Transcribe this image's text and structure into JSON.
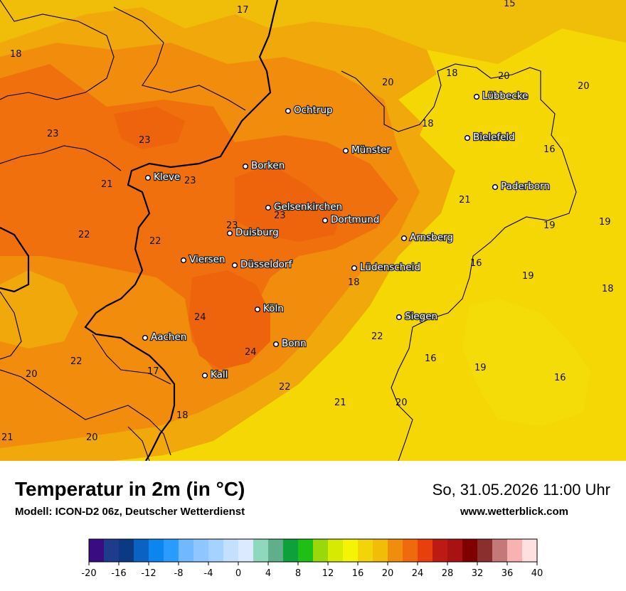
{
  "map": {
    "cities": [
      {
        "name": "Ochtrup"
      },
      {
        "name": "Lübbecke"
      },
      {
        "name": "Bielefeld"
      },
      {
        "name": "Münster"
      },
      {
        "name": "Borken"
      },
      {
        "name": "Kleve"
      },
      {
        "name": "Paderborn"
      },
      {
        "name": "Gelsenkirchen"
      },
      {
        "name": "Dortmund"
      },
      {
        "name": "Duisburg"
      },
      {
        "name": "Arnsberg"
      },
      {
        "name": "Viersen"
      },
      {
        "name": "Düsseldorf"
      },
      {
        "name": "Lüdenscheid"
      },
      {
        "name": "Köln"
      },
      {
        "name": "Siegen"
      },
      {
        "name": "Aachen"
      },
      {
        "name": "Bonn"
      },
      {
        "name": "Kall"
      }
    ],
    "temperature_labels": [
      "17",
      "15",
      "18",
      "18",
      "20",
      "20",
      "20",
      "23",
      "23",
      "18",
      "16",
      "21",
      "23",
      "21",
      "23",
      "22",
      "22",
      "23",
      "19",
      "19",
      "16",
      "19",
      "18",
      "18",
      "24",
      "22",
      "22",
      "16",
      "19",
      "20",
      "17",
      "16",
      "24",
      "22",
      "21",
      "20",
      "18",
      "21",
      "20"
    ]
  },
  "footer": {
    "title": "Temperatur in 2m (in °C)",
    "model": "Modell: ICON-D2 06z, Deutscher Wetterdienst",
    "datetime": "So, 31.05.2026 11:00 Uhr",
    "website": "www.wetterblick.com"
  },
  "color_scale": {
    "ticks": [
      "-20",
      "-16",
      "-12",
      "-8",
      "-4",
      "0",
      "4",
      "8",
      "12",
      "16",
      "20",
      "24",
      "28",
      "32",
      "36",
      "40"
    ],
    "colors": [
      "#3a0c82",
      "#1f3b8c",
      "#0b3a82",
      "#0a62c2",
      "#0b86ef",
      "#2a9bff",
      "#70b8ff",
      "#8fc6ff",
      "#a6d2ff",
      "#c3e0ff",
      "#dbeaff",
      "#8fd8bd",
      "#5fae8c",
      "#0da03b",
      "#1fbf16",
      "#99d80a",
      "#d7ea02",
      "#f4f403",
      "#f3d409",
      "#f1bd07",
      "#f08d0c",
      "#f06a0d",
      "#e8400c",
      "#be1a14",
      "#a81212",
      "#800000",
      "#8b2e2e",
      "#c47878",
      "#f8b2b2",
      "#ffe0e0"
    ]
  }
}
